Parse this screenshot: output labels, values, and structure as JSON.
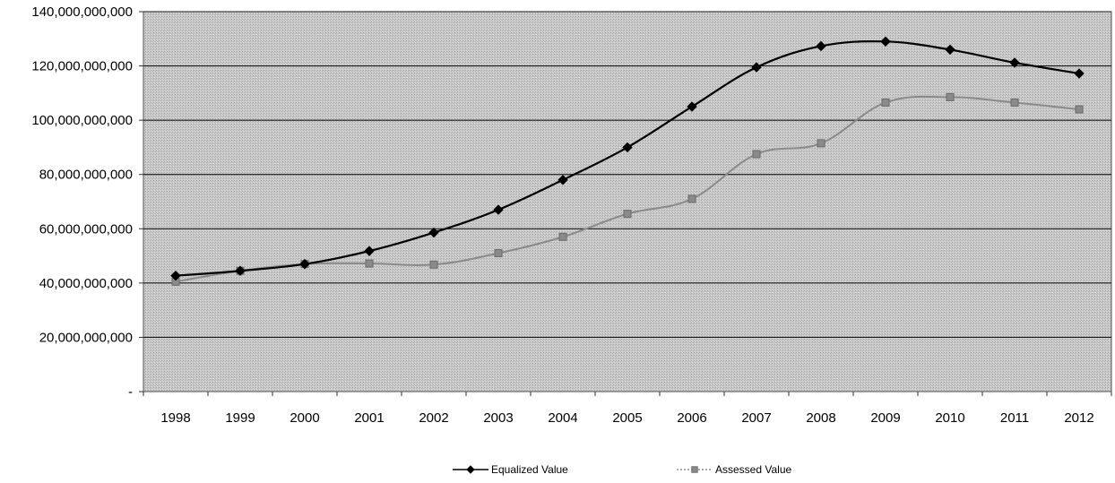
{
  "chart_data": {
    "type": "line",
    "title": "",
    "xlabel": "",
    "ylabel": "",
    "categories": [
      "1998",
      "1999",
      "2000",
      "2001",
      "2002",
      "2003",
      "2004",
      "2005",
      "2006",
      "2007",
      "2008",
      "2009",
      "2010",
      "2011",
      "2012"
    ],
    "ylim": [
      0,
      140000000000
    ],
    "y_ticks": [
      0,
      20000000000,
      40000000000,
      60000000000,
      80000000000,
      100000000000,
      120000000000,
      140000000000
    ],
    "y_tick_labels": [
      "-",
      "20,000,000,000",
      "40,000,000,000",
      "60,000,000,000",
      "80,000,000,000",
      "100,000,000,000",
      "120,000,000,000",
      "140,000,000,000"
    ],
    "grid": true,
    "legend_position": "bottom",
    "series": [
      {
        "name": "Equalized Value",
        "color": "#000000",
        "marker": "diamond",
        "line_style": "solid",
        "values": [
          42700000000,
          44500000000,
          47000000000,
          51800000000,
          58600000000,
          67000000000,
          78000000000,
          90000000000,
          105000000000,
          119500000000,
          127300000000,
          129000000000,
          126000000000,
          121200000000,
          117200000000
        ]
      },
      {
        "name": "Assessed Value",
        "color": "#8a8a8a",
        "marker": "square",
        "line_style": "dotted",
        "values": [
          40500000000,
          44500000000,
          47000000000,
          47200000000,
          46800000000,
          51000000000,
          57000000000,
          65500000000,
          71000000000,
          87500000000,
          91500000000,
          106500000000,
          108500000000,
          106500000000,
          104000000000
        ]
      }
    ]
  }
}
